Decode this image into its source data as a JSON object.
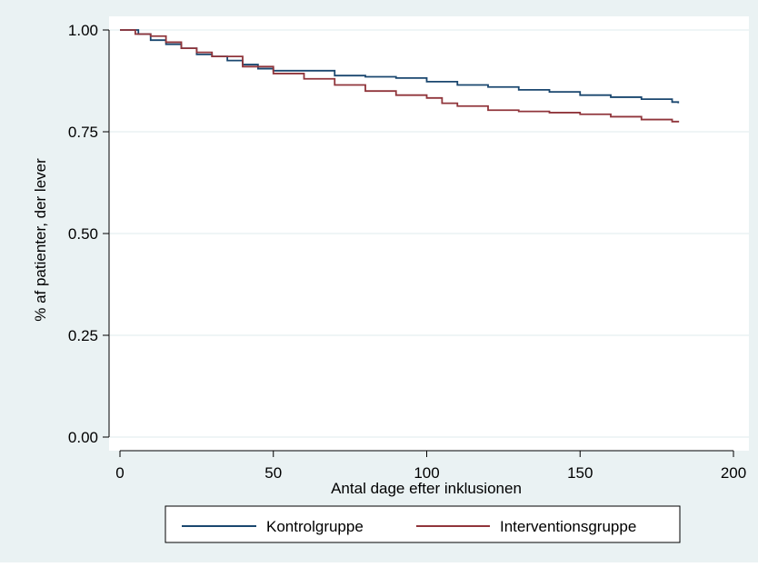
{
  "chart_data": {
    "type": "line",
    "title": "",
    "xlabel": "Antal dage efter inklusionen",
    "ylabel": "% af patienter, der lever",
    "xlim": [
      0,
      200
    ],
    "ylim": [
      0,
      1
    ],
    "x_ticks": [
      0,
      50,
      100,
      150,
      200
    ],
    "x_tick_labels": [
      "0",
      "50",
      "100",
      "150",
      "200"
    ],
    "y_ticks": [
      0,
      0.25,
      0.5,
      0.75,
      1.0
    ],
    "y_tick_labels": [
      "0.00",
      "0.25",
      "0.50",
      "0.75",
      "1.00"
    ],
    "grid": "horizontal",
    "legend_position": "bottom",
    "colors": {
      "outer_background": "#eaf2f3",
      "plot_background": "#ffffff",
      "gridline": "#eaf2f3"
    },
    "series": [
      {
        "name": "Kontrolgruppe",
        "color": "#1a476f",
        "x": [
          0,
          6,
          10,
          15,
          20,
          25,
          30,
          35,
          40,
          45,
          50,
          60,
          70,
          80,
          90,
          100,
          110,
          120,
          130,
          140,
          150,
          160,
          170,
          180,
          182
        ],
        "y": [
          1.0,
          0.99,
          0.975,
          0.965,
          0.955,
          0.94,
          0.935,
          0.925,
          0.915,
          0.905,
          0.9,
          0.9,
          0.888,
          0.885,
          0.882,
          0.873,
          0.865,
          0.86,
          0.853,
          0.848,
          0.84,
          0.835,
          0.83,
          0.823,
          0.82
        ]
      },
      {
        "name": "Interventionsgruppe",
        "color": "#90353b",
        "x": [
          0,
          5,
          10,
          15,
          20,
          25,
          30,
          40,
          50,
          60,
          70,
          80,
          90,
          100,
          105,
          110,
          120,
          130,
          140,
          150,
          160,
          170,
          180,
          182
        ],
        "y": [
          1.0,
          0.99,
          0.985,
          0.97,
          0.955,
          0.945,
          0.935,
          0.91,
          0.893,
          0.88,
          0.865,
          0.85,
          0.84,
          0.833,
          0.82,
          0.813,
          0.803,
          0.8,
          0.797,
          0.793,
          0.787,
          0.78,
          0.775,
          0.773
        ]
      }
    ]
  }
}
